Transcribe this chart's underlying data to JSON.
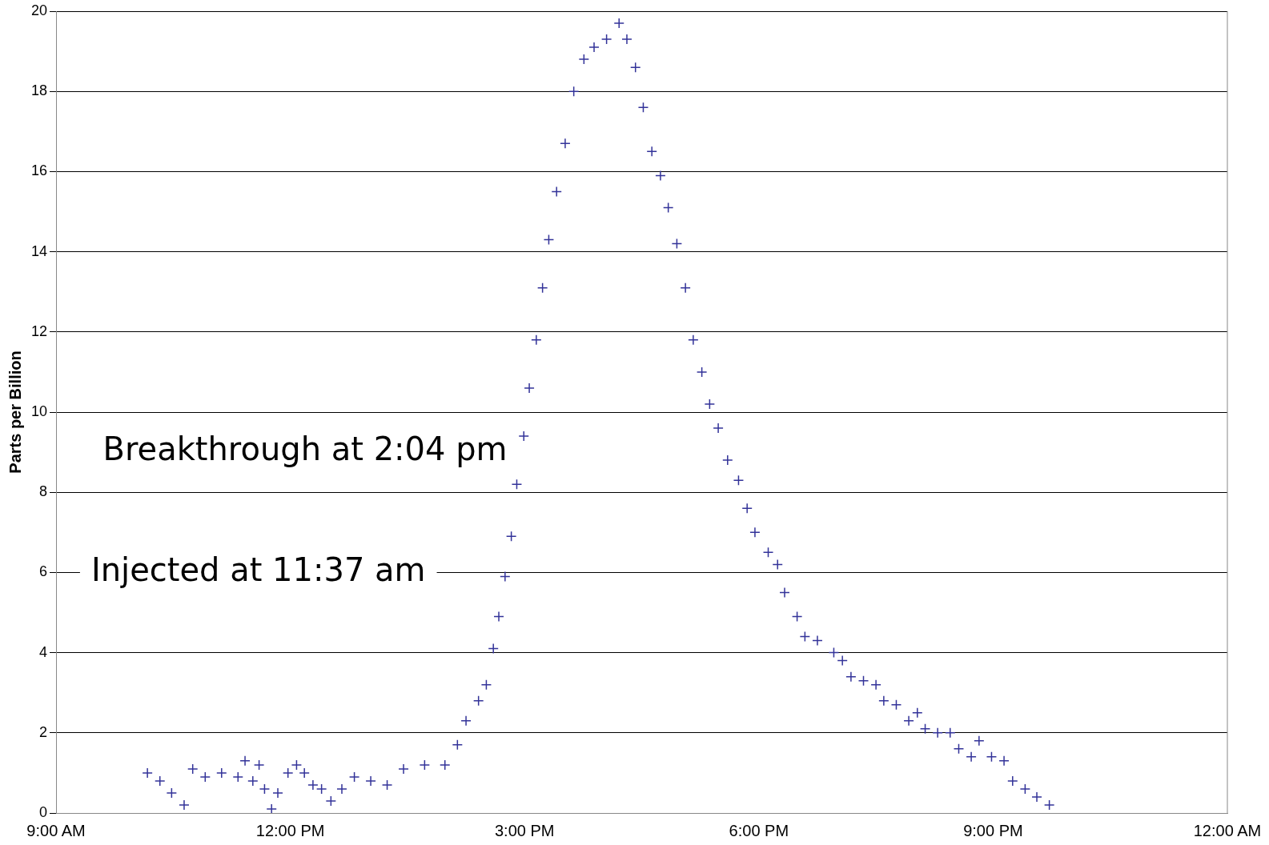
{
  "chart_data": {
    "type": "scatter",
    "ylabel": "Parts per Billion",
    "annotations": [
      "Breakthrough at 2:04 pm",
      "Injected at 11:37 am"
    ],
    "xlim": [
      9,
      24
    ],
    "xticks": [
      {
        "value": 9,
        "label": "9:00 AM"
      },
      {
        "value": 12,
        "label": "12:00 PM"
      },
      {
        "value": 15,
        "label": "3:00 PM"
      },
      {
        "value": 18,
        "label": "6:00 PM"
      },
      {
        "value": 21,
        "label": "9:00 PM"
      },
      {
        "value": 24,
        "label": "12:00 AM"
      }
    ],
    "ylim": [
      0,
      20
    ],
    "yticks": [
      0,
      2,
      4,
      6,
      8,
      10,
      12,
      14,
      16,
      18,
      20
    ],
    "grid": "y",
    "legend": false,
    "marker": "cross",
    "series": [
      {
        "color": "#333399",
        "x": [
          10.17,
          10.33,
          10.48,
          10.64,
          10.75,
          10.91,
          11.12,
          11.33,
          11.42,
          11.52,
          11.6,
          11.67,
          11.76,
          11.84,
          11.97,
          12.08,
          12.18,
          12.29,
          12.4,
          12.52,
          12.66,
          12.82,
          13.03,
          13.24,
          13.45,
          13.72,
          13.98,
          14.14,
          14.25,
          14.41,
          14.51,
          14.6,
          14.67,
          14.75,
          14.83,
          14.9,
          14.99,
          15.06,
          15.15,
          15.23,
          15.31,
          15.41,
          15.52,
          15.63,
          15.76,
          15.89,
          16.05,
          16.21,
          16.31,
          16.42,
          16.52,
          16.63,
          16.74,
          16.84,
          16.95,
          17.06,
          17.16,
          17.27,
          17.37,
          17.48,
          17.6,
          17.74,
          17.85,
          17.95,
          18.12,
          18.24,
          18.33,
          18.49,
          18.59,
          18.75,
          18.96,
          19.07,
          19.18,
          19.34,
          19.5,
          19.6,
          19.76,
          19.92,
          20.03,
          20.13,
          20.29,
          20.45,
          20.56,
          20.72,
          20.82,
          20.98,
          21.14,
          21.25,
          21.41,
          21.56,
          21.72
        ],
        "values": [
          1.0,
          0.8,
          0.5,
          0.2,
          1.1,
          0.9,
          1.0,
          0.9,
          1.3,
          0.8,
          1.2,
          0.6,
          0.1,
          0.5,
          1.0,
          1.2,
          1.0,
          0.7,
          0.6,
          0.3,
          0.6,
          0.9,
          0.8,
          0.7,
          1.1,
          1.2,
          1.2,
          1.7,
          2.3,
          2.8,
          3.2,
          4.1,
          4.9,
          5.9,
          6.9,
          8.2,
          9.4,
          10.6,
          11.8,
          13.1,
          14.3,
          15.5,
          16.7,
          18.0,
          18.8,
          19.1,
          19.3,
          19.7,
          19.3,
          18.6,
          17.6,
          16.5,
          15.9,
          15.1,
          14.2,
          13.1,
          11.8,
          11.0,
          10.2,
          9.6,
          8.8,
          8.3,
          7.6,
          7.0,
          6.5,
          6.2,
          5.5,
          4.9,
          4.4,
          4.3,
          4.0,
          3.8,
          3.4,
          3.3,
          3.2,
          2.8,
          2.7,
          2.3,
          2.5,
          2.1,
          2.0,
          2.0,
          1.6,
          1.4,
          1.8,
          1.4,
          1.3,
          0.8,
          0.6,
          0.4,
          0.2
        ]
      }
    ]
  }
}
